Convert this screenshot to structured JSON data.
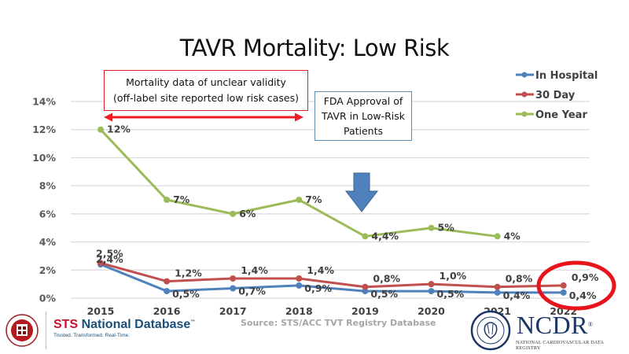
{
  "title": "TAVR Mortality: Low Risk",
  "annotations": {
    "unclear_box": {
      "line1": "Mortality data of unclear validity",
      "line2": "(off-label site reported low risk cases)"
    },
    "fda_box": {
      "line1": "FDA Approval of",
      "line2": "TAVR in Low-Risk",
      "line3": "Patients"
    },
    "arrow_color": "#4f81bd",
    "double_arrow_color": "#ee1c25",
    "highlight_circle_color": "#e8141c"
  },
  "source": "Source:  STS/ACC TVT Registry Database",
  "logos": {
    "sts": {
      "brand_sts": "STS",
      "brand_rest": "National Database",
      "tm": "™",
      "tagline": "Trusted. Transformed. Real-Time."
    },
    "ncdr": {
      "name": "NCDR",
      "reg": "®",
      "subtitle": "NATIONAL CARDIOVASCULAR DATA REGISTRY"
    }
  },
  "chart_data": {
    "type": "line",
    "title": "TAVR Mortality: Low Risk",
    "xlabel": "",
    "ylabel": "",
    "x": [
      "2015",
      "2016",
      "2017",
      "2018",
      "2019",
      "2020",
      "2021",
      "2022"
    ],
    "ylim": [
      0,
      14
    ],
    "yticks": [
      "0%",
      "2%",
      "4%",
      "6%",
      "8%",
      "10%",
      "12%",
      "14%"
    ],
    "grid": true,
    "legend_position": "top-right",
    "series": [
      {
        "name": "In Hospital",
        "color": "#4f81bd",
        "values": [
          2.4,
          0.5,
          0.7,
          0.9,
          0.5,
          0.5,
          0.4,
          0.4
        ],
        "labels": [
          "2,4%",
          "0,5%",
          "0,7%",
          "0,9%",
          "0,5%",
          "0,5%",
          "0,4%",
          "0,4%"
        ]
      },
      {
        "name": "30 Day",
        "color": "#c0504d",
        "values": [
          2.5,
          1.2,
          1.4,
          1.4,
          0.8,
          1.0,
          0.8,
          0.9
        ],
        "labels": [
          "2,5%",
          "1,2%",
          "1,4%",
          "1,4%",
          "0,8%",
          "1,0%",
          "0,8%",
          "0,9%"
        ]
      },
      {
        "name": "One Year",
        "color": "#9bbb59",
        "values": [
          12,
          7,
          6,
          7,
          4.4,
          5,
          4.4,
          null
        ],
        "labels": [
          "12%",
          "7%",
          "6%",
          "7%",
          "4,4%",
          "5%",
          "4%",
          null
        ]
      }
    ]
  }
}
